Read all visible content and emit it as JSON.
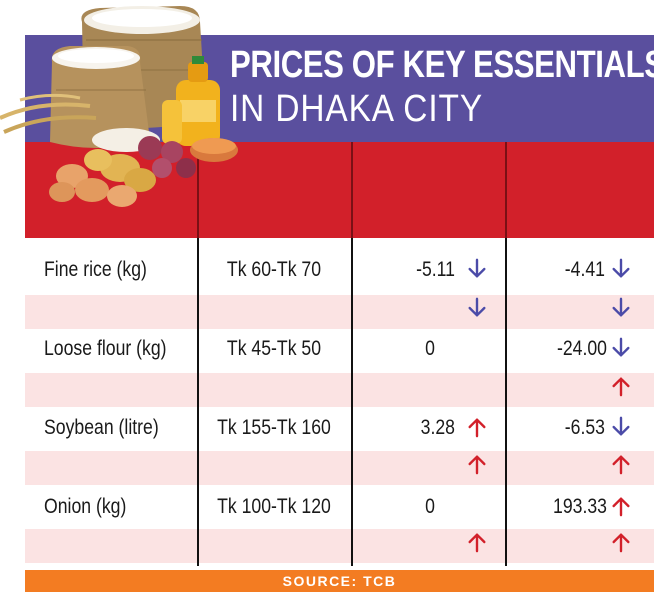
{
  "title": {
    "line1": "PRICES OF KEY ESSENTIALS",
    "line2": "IN DHAKA CITY"
  },
  "rows": [
    {
      "item": "Fine rice (kg)",
      "price": "Tk 60-Tk 70",
      "change1": "-5.11",
      "change2": "-4.41",
      "arrows": {
        "main1": "down",
        "main2": "down",
        "sub1": "down",
        "sub2": "down"
      }
    },
    {
      "item": "Loose flour (kg)",
      "price": "Tk 45-Tk 50",
      "change1": "0",
      "change2": "-24.00",
      "arrows": {
        "main1": "",
        "main2": "down",
        "sub1": "",
        "sub2": "up"
      }
    },
    {
      "item": "Soybean (litre)",
      "price": "Tk 155-Tk 160",
      "change1": "3.28",
      "change2": "-6.53",
      "arrows": {
        "main1": "up",
        "main2": "down",
        "sub1": "up",
        "sub2": "up"
      }
    },
    {
      "item": "Onion (kg)",
      "price": "Tk 100-Tk 120",
      "change1": "0",
      "change2": "193.33",
      "arrows": {
        "main1": "",
        "main2": "up",
        "sub1": "up",
        "sub2": "up"
      }
    }
  ],
  "source": "SOURCE: TCB",
  "colors": {
    "title_band": "#5a4f9e",
    "header_band": "#d2202a",
    "stripe": "#fbe3e3",
    "arrow_down": "#4b4ba8",
    "arrow_up": "#d2202a",
    "source_band": "#f37c22"
  },
  "illustration": "groceries-icon"
}
